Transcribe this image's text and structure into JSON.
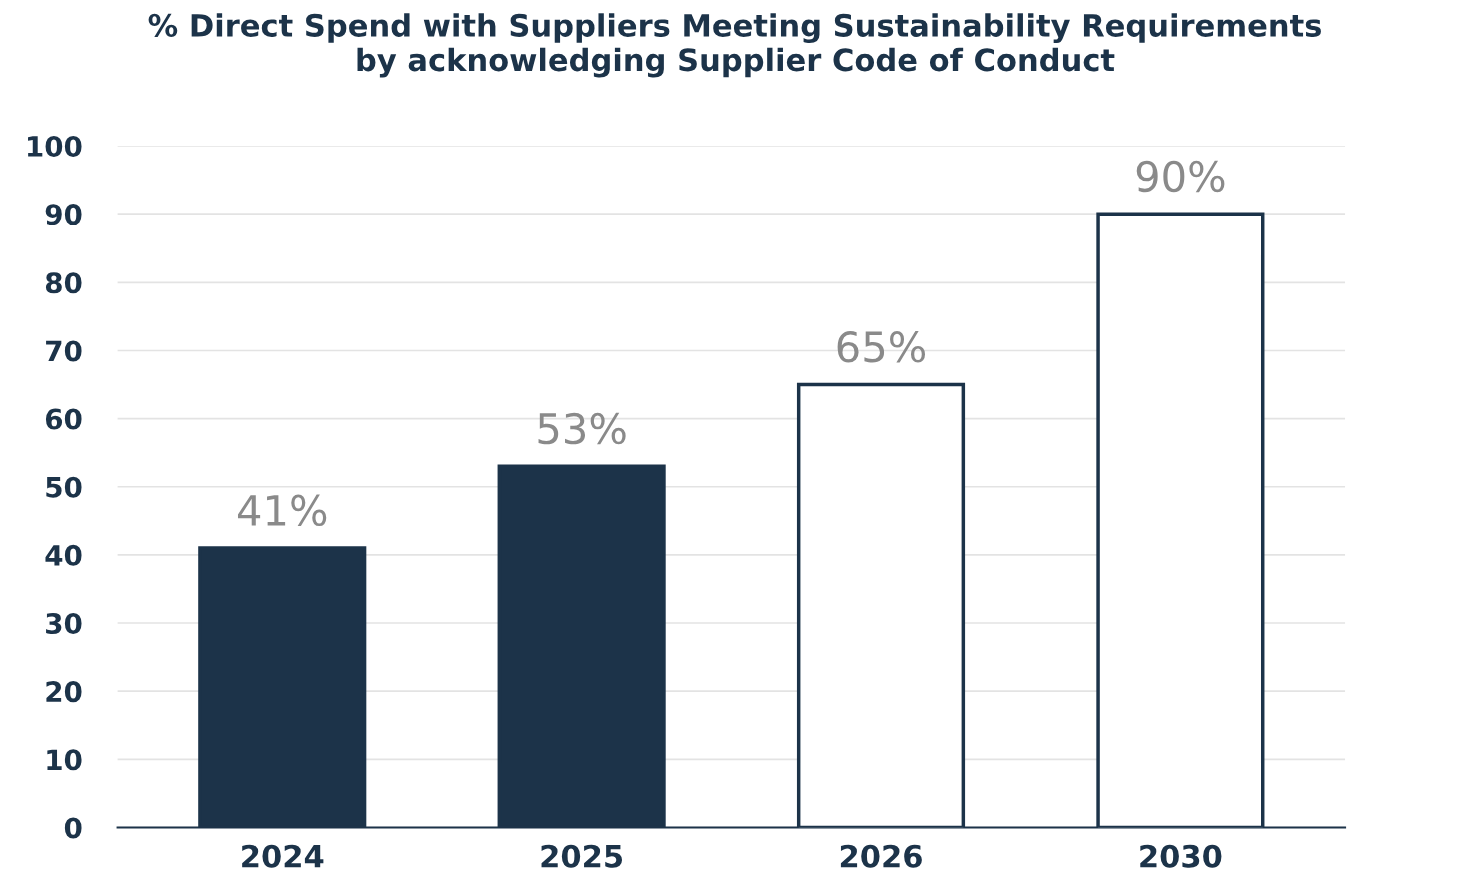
{
  "chart_data": {
    "type": "bar",
    "title": "% Direct Spend with Suppliers Meeting Sustainability Requirements\nby acknowledging Supplier Code of Conduct",
    "categories": [
      "2024",
      "2025",
      "2026",
      "2030"
    ],
    "values": [
      41,
      53,
      65,
      90
    ],
    "value_labels": [
      "41%",
      "53%",
      "65%",
      "90%"
    ],
    "color": "#1c3349",
    "colors": [
      "#1c3349",
      "#1c3349",
      "#ffffff",
      "#ffffff"
    ],
    "ylim": [
      0,
      100
    ],
    "yticks": [
      0,
      10,
      20,
      30,
      40,
      50,
      60,
      70,
      80,
      90,
      100
    ],
    "grid": "y",
    "legend": false
  }
}
